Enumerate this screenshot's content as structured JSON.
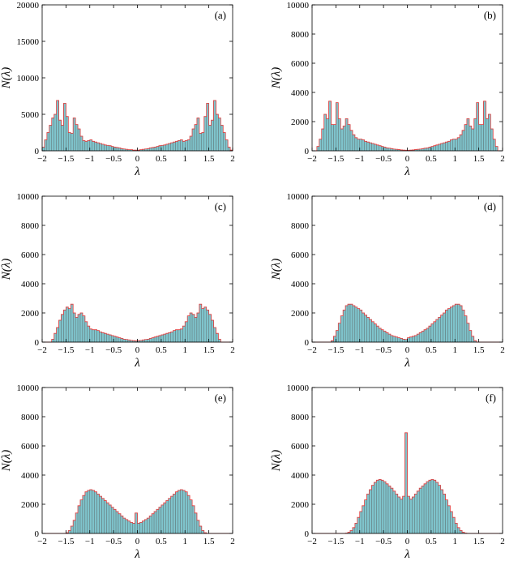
{
  "chart_data": [
    {
      "type": "bar",
      "panel_label": "(a)",
      "xlabel": "λ",
      "ylabel": "N(λ)",
      "xlim": [
        -2,
        2
      ],
      "ylim": [
        0,
        20000
      ],
      "xticks": [
        "−2",
        "−1.5",
        "−1",
        "−0.5",
        "0",
        "0.5",
        "1",
        "1.5",
        "2"
      ],
      "yticks": [
        "0",
        "5000",
        "10000",
        "15000",
        "20000"
      ],
      "bin_width": 0.05,
      "x": [
        -1.975,
        -1.925,
        -1.875,
        -1.825,
        -1.775,
        -1.725,
        -1.675,
        -1.625,
        -1.575,
        -1.525,
        -1.475,
        -1.425,
        -1.375,
        -1.325,
        -1.275,
        -1.225,
        -1.175,
        -1.125,
        -1.075,
        -1.025,
        -0.975,
        -0.925,
        -0.875,
        -0.825,
        -0.775,
        -0.725,
        -0.675,
        -0.625,
        -0.575,
        -0.525,
        -0.475,
        -0.425,
        -0.375,
        -0.325,
        -0.275,
        -0.225,
        -0.175,
        -0.125,
        -0.075,
        -0.025,
        0.025,
        0.075,
        0.125,
        0.175,
        0.225,
        0.275,
        0.325,
        0.375,
        0.425,
        0.475,
        0.525,
        0.575,
        0.625,
        0.675,
        0.725,
        0.775,
        0.825,
        0.875,
        0.925,
        0.975,
        1.025,
        1.075,
        1.125,
        1.175,
        1.225,
        1.275,
        1.325,
        1.375,
        1.425,
        1.475,
        1.525,
        1.575,
        1.625,
        1.675,
        1.725,
        1.775,
        1.825,
        1.875,
        1.925,
        1.975
      ],
      "values": [
        500,
        1500,
        2500,
        3500,
        4500,
        5000,
        6900,
        4200,
        3500,
        6500,
        4700,
        2500,
        2400,
        4500,
        3600,
        3000,
        2000,
        1400,
        1300,
        1400,
        1500,
        1300,
        1200,
        1100,
        1000,
        900,
        800,
        750,
        700,
        600,
        500,
        450,
        400,
        300,
        250,
        200,
        150,
        150,
        100,
        100,
        100,
        150,
        200,
        250,
        300,
        400,
        450,
        500,
        600,
        700,
        750,
        800,
        900,
        1000,
        1100,
        1200,
        1300,
        1400,
        1500,
        1300,
        1400,
        1500,
        2000,
        3000,
        3600,
        4500,
        2400,
        2500,
        4700,
        6500,
        3500,
        4200,
        6900,
        5000,
        4500,
        3500,
        2500,
        1500,
        500,
        100
      ]
    },
    {
      "type": "bar",
      "panel_label": "(b)",
      "xlabel": "λ",
      "ylabel": "N(λ)",
      "xlim": [
        -2,
        2
      ],
      "ylim": [
        0,
        10000
      ],
      "xticks": [
        "−2",
        "−1.5",
        "−1",
        "−0.5",
        "0",
        "0.5",
        "1",
        "1.5",
        "2"
      ],
      "yticks": [
        "0",
        "2000",
        "4000",
        "6000",
        "8000",
        "10000"
      ],
      "bin_width": 0.05,
      "x": [
        -1.975,
        -1.925,
        -1.875,
        -1.825,
        -1.775,
        -1.725,
        -1.675,
        -1.625,
        -1.575,
        -1.525,
        -1.475,
        -1.425,
        -1.375,
        -1.325,
        -1.275,
        -1.225,
        -1.175,
        -1.125,
        -1.075,
        -1.025,
        -0.975,
        -0.925,
        -0.875,
        -0.825,
        -0.775,
        -0.725,
        -0.675,
        -0.625,
        -0.575,
        -0.525,
        -0.475,
        -0.425,
        -0.375,
        -0.325,
        -0.275,
        -0.225,
        -0.175,
        -0.125,
        -0.075,
        -0.025,
        0.025,
        0.075,
        0.125,
        0.175,
        0.225,
        0.275,
        0.325,
        0.375,
        0.425,
        0.475,
        0.525,
        0.575,
        0.625,
        0.675,
        0.725,
        0.775,
        0.825,
        0.875,
        0.925,
        0.975,
        1.025,
        1.075,
        1.125,
        1.175,
        1.225,
        1.275,
        1.325,
        1.375,
        1.425,
        1.475,
        1.525,
        1.575,
        1.625,
        1.675,
        1.725,
        1.775,
        1.825,
        1.875,
        1.925,
        1.975
      ],
      "values": [
        0,
        0,
        300,
        800,
        1500,
        2500,
        2200,
        3400,
        1800,
        1800,
        3300,
        2200,
        1500,
        1700,
        2200,
        1800,
        1400,
        1100,
        900,
        800,
        800,
        750,
        650,
        600,
        550,
        500,
        450,
        400,
        350,
        300,
        250,
        200,
        180,
        150,
        120,
        100,
        80,
        60,
        50,
        40,
        40,
        50,
        60,
        80,
        100,
        120,
        150,
        180,
        200,
        250,
        300,
        350,
        400,
        450,
        500,
        550,
        600,
        650,
        750,
        800,
        800,
        900,
        1100,
        1400,
        1800,
        2200,
        1700,
        1500,
        2200,
        3300,
        1800,
        1800,
        3400,
        2200,
        2500,
        1500,
        800,
        300,
        0,
        0
      ]
    },
    {
      "type": "bar",
      "panel_label": "(c)",
      "xlabel": "λ",
      "ylabel": "N(λ)",
      "xlim": [
        -2,
        2
      ],
      "ylim": [
        0,
        10000
      ],
      "xticks": [
        "−2",
        "−1.5",
        "−1",
        "−0.5",
        "0",
        "0.5",
        "1",
        "1.5",
        "2"
      ],
      "yticks": [
        "0",
        "2000",
        "4000",
        "6000",
        "8000",
        "10000"
      ],
      "bin_width": 0.05,
      "x": [
        -1.975,
        -1.925,
        -1.875,
        -1.825,
        -1.775,
        -1.725,
        -1.675,
        -1.625,
        -1.575,
        -1.525,
        -1.475,
        -1.425,
        -1.375,
        -1.325,
        -1.275,
        -1.225,
        -1.175,
        -1.125,
        -1.075,
        -1.025,
        -0.975,
        -0.925,
        -0.875,
        -0.825,
        -0.775,
        -0.725,
        -0.675,
        -0.625,
        -0.575,
        -0.525,
        -0.475,
        -0.425,
        -0.375,
        -0.325,
        -0.275,
        -0.225,
        -0.175,
        -0.125,
        -0.075,
        -0.025,
        0.025,
        0.075,
        0.125,
        0.175,
        0.225,
        0.275,
        0.325,
        0.375,
        0.425,
        0.475,
        0.525,
        0.575,
        0.625,
        0.675,
        0.725,
        0.775,
        0.825,
        0.875,
        0.925,
        0.975,
        1.025,
        1.075,
        1.125,
        1.175,
        1.225,
        1.275,
        1.325,
        1.375,
        1.425,
        1.475,
        1.525,
        1.575,
        1.625,
        1.675,
        1.725,
        1.775,
        1.825,
        1.875,
        1.925,
        1.975
      ],
      "values": [
        0,
        0,
        0,
        0,
        200,
        600,
        1000,
        1500,
        1900,
        2200,
        2400,
        2300,
        2600,
        2000,
        1700,
        1900,
        2000,
        1800,
        1400,
        1100,
        900,
        850,
        850,
        800,
        700,
        650,
        600,
        550,
        500,
        450,
        400,
        350,
        300,
        250,
        200,
        180,
        150,
        120,
        100,
        80,
        100,
        120,
        150,
        180,
        200,
        250,
        300,
        350,
        400,
        450,
        500,
        550,
        600,
        650,
        700,
        800,
        850,
        850,
        900,
        1100,
        1400,
        1800,
        2000,
        1900,
        1700,
        2000,
        2600,
        2300,
        2400,
        2200,
        1900,
        1500,
        1000,
        600,
        200,
        0,
        0,
        0,
        0,
        0
      ]
    },
    {
      "type": "bar",
      "panel_label": "(d)",
      "xlabel": "λ",
      "ylabel": "N(λ)",
      "xlim": [
        -2,
        2
      ],
      "ylim": [
        0,
        10000
      ],
      "xticks": [
        "−2",
        "−1.5",
        "−1",
        "−0.5",
        "0",
        "0.5",
        "1",
        "1.5",
        "2"
      ],
      "yticks": [
        "0",
        "2000",
        "4000",
        "6000",
        "8000",
        "10000"
      ],
      "bin_width": 0.05,
      "x": [
        -1.975,
        -1.925,
        -1.875,
        -1.825,
        -1.775,
        -1.725,
        -1.675,
        -1.625,
        -1.575,
        -1.525,
        -1.475,
        -1.425,
        -1.375,
        -1.325,
        -1.275,
        -1.225,
        -1.175,
        -1.125,
        -1.075,
        -1.025,
        -0.975,
        -0.925,
        -0.875,
        -0.825,
        -0.775,
        -0.725,
        -0.675,
        -0.625,
        -0.575,
        -0.525,
        -0.475,
        -0.425,
        -0.375,
        -0.325,
        -0.275,
        -0.225,
        -0.175,
        -0.125,
        -0.075,
        -0.025,
        0.025,
        0.075,
        0.125,
        0.175,
        0.225,
        0.275,
        0.325,
        0.375,
        0.425,
        0.475,
        0.525,
        0.575,
        0.625,
        0.675,
        0.725,
        0.775,
        0.825,
        0.875,
        0.925,
        0.975,
        1.025,
        1.075,
        1.125,
        1.175,
        1.225,
        1.275,
        1.325,
        1.375,
        1.425,
        1.475,
        1.525,
        1.575,
        1.625,
        1.675,
        1.725,
        1.775,
        1.825,
        1.875,
        1.925,
        1.975
      ],
      "values": [
        0,
        0,
        0,
        0,
        0,
        0,
        0,
        0,
        100,
        400,
        800,
        1300,
        1800,
        2200,
        2500,
        2600,
        2600,
        2500,
        2400,
        2300,
        2200,
        2000,
        1850,
        1700,
        1550,
        1400,
        1250,
        1100,
        950,
        850,
        750,
        650,
        550,
        450,
        400,
        350,
        300,
        250,
        200,
        180,
        300,
        350,
        400,
        450,
        550,
        650,
        750,
        850,
        950,
        1100,
        1250,
        1400,
        1550,
        1700,
        1850,
        2000,
        2200,
        2300,
        2400,
        2500,
        2600,
        2600,
        2500,
        2200,
        1800,
        1300,
        800,
        400,
        100,
        0,
        0,
        0,
        0,
        0,
        0,
        0,
        0,
        0,
        0,
        0
      ]
    },
    {
      "type": "bar",
      "panel_label": "(e)",
      "xlabel": "λ",
      "ylabel": "N(λ)",
      "xlim": [
        -2,
        2
      ],
      "ylim": [
        0,
        10000
      ],
      "xticks": [
        "−2",
        "−1.5",
        "−1",
        "−0.5",
        "0",
        "0.5",
        "1",
        "1.5",
        "2"
      ],
      "yticks": [
        "0",
        "2000",
        "4000",
        "6000",
        "8000",
        "10000"
      ],
      "bin_width": 0.05,
      "x": [
        -1.975,
        -1.925,
        -1.875,
        -1.825,
        -1.775,
        -1.725,
        -1.675,
        -1.625,
        -1.575,
        -1.525,
        -1.475,
        -1.425,
        -1.375,
        -1.325,
        -1.275,
        -1.225,
        -1.175,
        -1.125,
        -1.075,
        -1.025,
        -0.975,
        -0.925,
        -0.875,
        -0.825,
        -0.775,
        -0.725,
        -0.675,
        -0.625,
        -0.575,
        -0.525,
        -0.475,
        -0.425,
        -0.375,
        -0.325,
        -0.275,
        -0.225,
        -0.175,
        -0.125,
        -0.075,
        -0.025,
        0.025,
        0.075,
        0.125,
        0.175,
        0.225,
        0.275,
        0.325,
        0.375,
        0.425,
        0.475,
        0.525,
        0.575,
        0.625,
        0.675,
        0.725,
        0.775,
        0.825,
        0.875,
        0.925,
        0.975,
        1.025,
        1.075,
        1.125,
        1.175,
        1.225,
        1.275,
        1.325,
        1.375,
        1.425,
        1.475,
        1.525,
        1.575,
        1.625,
        1.675,
        1.725,
        1.775,
        1.825,
        1.875,
        1.925,
        1.975
      ],
      "values": [
        0,
        0,
        0,
        0,
        0,
        0,
        0,
        0,
        0,
        0,
        50,
        200,
        500,
        900,
        1400,
        1900,
        2300,
        2600,
        2850,
        2950,
        3000,
        2950,
        2850,
        2700,
        2550,
        2400,
        2250,
        2100,
        1950,
        1800,
        1650,
        1500,
        1350,
        1200,
        1050,
        950,
        850,
        750,
        700,
        1400,
        700,
        750,
        850,
        950,
        1050,
        1200,
        1350,
        1500,
        1650,
        1800,
        1950,
        2100,
        2250,
        2400,
        2550,
        2700,
        2850,
        2950,
        3000,
        2950,
        2850,
        2600,
        2300,
        1900,
        1400,
        900,
        500,
        200,
        50,
        0,
        0,
        0,
        0,
        0,
        0,
        0,
        0,
        0,
        0,
        0
      ]
    },
    {
      "type": "bar",
      "panel_label": "(f)",
      "xlabel": "λ",
      "ylabel": "N(λ)",
      "xlim": [
        -2,
        2
      ],
      "ylim": [
        0,
        10000
      ],
      "xticks": [
        "−2",
        "−1.5",
        "−1",
        "−0.5",
        "0",
        "0.5",
        "1",
        "1.5",
        "2"
      ],
      "yticks": [
        "0",
        "2000",
        "4000",
        "6000",
        "8000",
        "10000"
      ],
      "bin_width": 0.05,
      "x": [
        -1.975,
        -1.925,
        -1.875,
        -1.825,
        -1.775,
        -1.725,
        -1.675,
        -1.625,
        -1.575,
        -1.525,
        -1.475,
        -1.425,
        -1.375,
        -1.325,
        -1.275,
        -1.225,
        -1.175,
        -1.125,
        -1.075,
        -1.025,
        -0.975,
        -0.925,
        -0.875,
        -0.825,
        -0.775,
        -0.725,
        -0.675,
        -0.625,
        -0.575,
        -0.525,
        -0.475,
        -0.425,
        -0.375,
        -0.325,
        -0.275,
        -0.225,
        -0.175,
        -0.125,
        -0.075,
        -0.025,
        0.025,
        0.075,
        0.125,
        0.175,
        0.225,
        0.275,
        0.325,
        0.375,
        0.425,
        0.475,
        0.525,
        0.575,
        0.625,
        0.675,
        0.725,
        0.775,
        0.825,
        0.875,
        0.925,
        0.975,
        1.025,
        1.075,
        1.125,
        1.175,
        1.225,
        1.275,
        1.325,
        1.375,
        1.425,
        1.475,
        1.525,
        1.575,
        1.625,
        1.675,
        1.725,
        1.775,
        1.825,
        1.875,
        1.925,
        1.975
      ],
      "values": [
        0,
        0,
        0,
        0,
        0,
        0,
        0,
        0,
        0,
        0,
        0,
        0,
        0,
        0,
        20,
        80,
        200,
        400,
        700,
        1100,
        1500,
        1900,
        2300,
        2700,
        3000,
        3300,
        3500,
        3650,
        3700,
        3650,
        3550,
        3400,
        3250,
        3100,
        2900,
        2700,
        2500,
        2350,
        2550,
        6900,
        2550,
        2350,
        2500,
        2700,
        2900,
        3100,
        3250,
        3400,
        3550,
        3650,
        3700,
        3650,
        3500,
        3300,
        3000,
        2700,
        2300,
        1900,
        1500,
        1100,
        700,
        400,
        200,
        80,
        20,
        0,
        0,
        0,
        0,
        0,
        0,
        0,
        0,
        0,
        0,
        0,
        0,
        0,
        0,
        0
      ]
    }
  ]
}
